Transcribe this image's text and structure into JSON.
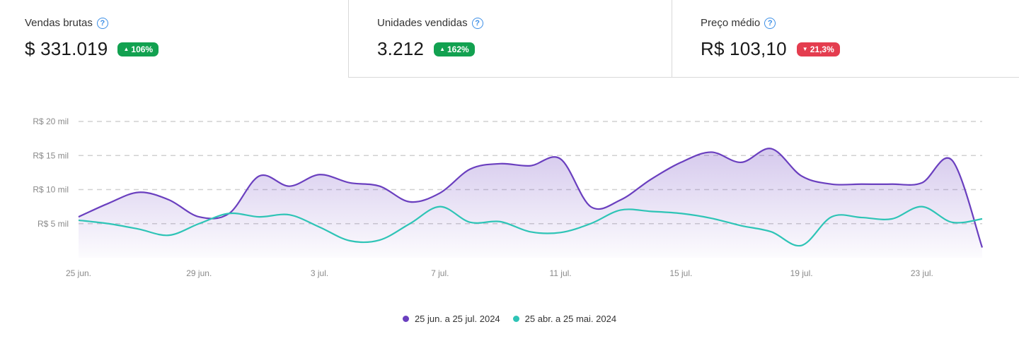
{
  "kpis": [
    {
      "label": "Vendas brutas",
      "value": "$ 331.019",
      "badge": "106%",
      "direction": "up"
    },
    {
      "label": "Unidades vendidas",
      "value": "3.212",
      "badge": "162%",
      "direction": "up"
    },
    {
      "label": "Preço médio",
      "value": "R$ 103,10",
      "badge": "21,3%",
      "direction": "down"
    }
  ],
  "help_glyph": "?",
  "colors": {
    "current": "#6a3fbf",
    "previous": "#2ec4b6",
    "up": "#12a150",
    "down": "#e43d4f",
    "grid": "#d0d0d0"
  },
  "chart_data": {
    "type": "area",
    "ylim": [
      0,
      20000
    ],
    "ytick_values": [
      5000,
      10000,
      15000,
      20000
    ],
    "ytick_labels": [
      "R$ 5 mil",
      "R$ 10 mil",
      "R$ 15 mil",
      "R$ 20 mil"
    ],
    "xtick_labels": [
      "25 jun.",
      "29 jun.",
      "3 jul.",
      "7 jul.",
      "11 jul.",
      "15 jul.",
      "19 jul.",
      "23 jul."
    ],
    "xtick_index": [
      0,
      4,
      8,
      12,
      16,
      20,
      24,
      28
    ],
    "x": [
      "25 jun.",
      "26 jun.",
      "27 jun.",
      "28 jun.",
      "29 jun.",
      "30 jun.",
      "1 jul.",
      "2 jul.",
      "3 jul.",
      "4 jul.",
      "5 jul.",
      "6 jul.",
      "7 jul.",
      "8 jul.",
      "9 jul.",
      "10 jul.",
      "11 jul.",
      "12 jul.",
      "13 jul.",
      "14 jul.",
      "15 jul.",
      "16 jul.",
      "17 jul.",
      "18 jul.",
      "19 jul.",
      "20 jul.",
      "21 jul.",
      "22 jul.",
      "23 jul.",
      "24 jul.",
      "25 jul."
    ],
    "grid": true,
    "legend_position": "bottom",
    "series": [
      {
        "name": "25 jun. a 25 jul. 2024",
        "color": "#6a3fbf",
        "fill": true,
        "values": [
          6000,
          8000,
          9600,
          8500,
          6000,
          6500,
          12000,
          10500,
          12200,
          11000,
          10500,
          8200,
          9500,
          13000,
          13800,
          13500,
          14500,
          7500,
          8500,
          11500,
          14000,
          15500,
          14000,
          16000,
          12000,
          10800,
          10800,
          10800,
          11000,
          14300,
          1500
        ]
      },
      {
        "name": "25 abr. a 25 mai. 2024",
        "color": "#2ec4b6",
        "fill": false,
        "values": [
          5500,
          5000,
          4200,
          3300,
          5000,
          6500,
          6000,
          6300,
          4500,
          2500,
          2600,
          5000,
          7500,
          5200,
          5300,
          3800,
          3700,
          5000,
          7000,
          6800,
          6500,
          5800,
          4700,
          3800,
          1800,
          6000,
          5900,
          5700,
          7500,
          5200,
          5700
        ]
      }
    ]
  }
}
